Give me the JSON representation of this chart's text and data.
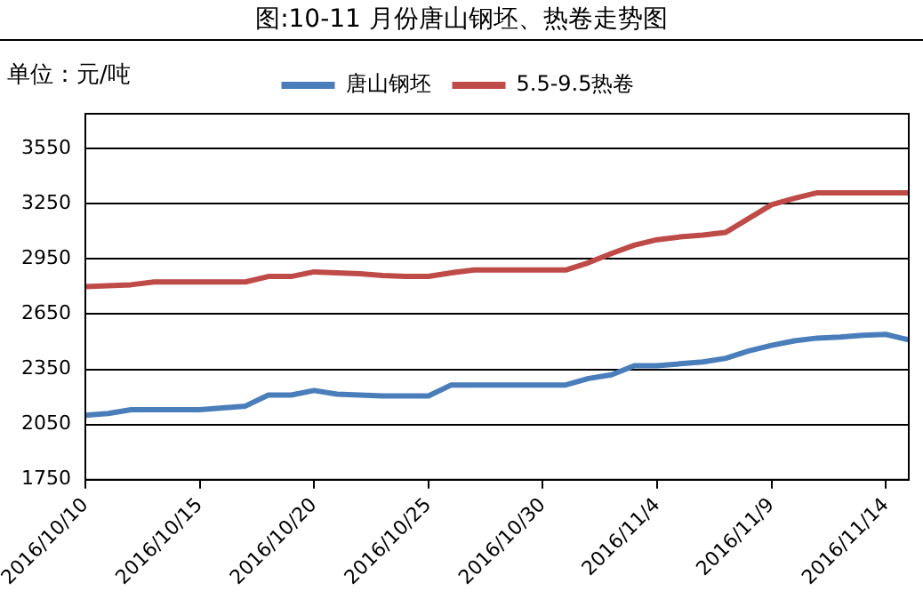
{
  "chart_data": {
    "type": "line",
    "title": "图:10-11 月份唐山钢坯、热卷走势图",
    "ylabel": "单位：元/吨",
    "x": [
      "2016-10-10",
      "2016-10-11",
      "2016-10-12",
      "2016-10-13",
      "2016-10-14",
      "2016-10-15",
      "2016-10-16",
      "2016-10-17",
      "2016-10-18",
      "2016-10-19",
      "2016-10-20",
      "2016-10-21",
      "2016-10-22",
      "2016-10-23",
      "2016-10-24",
      "2016-10-25",
      "2016-10-26",
      "2016-10-27",
      "2016-10-28",
      "2016-10-29",
      "2016-10-30",
      "2016-10-31",
      "2016-11-01",
      "2016-11-02",
      "2016-11-03",
      "2016-11-04",
      "2016-11-05",
      "2016-11-06",
      "2016-11-07",
      "2016-11-08",
      "2016-11-09",
      "2016-11-10",
      "2016-11-11",
      "2016-11-12",
      "2016-11-13",
      "2016-11-14",
      "2016-11-15"
    ],
    "series": [
      {
        "name": "唐山钢坯",
        "color": "#4a7ebb",
        "values": [
          2100,
          2110,
          2130,
          2130,
          2130,
          2130,
          2140,
          2150,
          2210,
          2210,
          2235,
          2215,
          2210,
          2205,
          2205,
          2205,
          2265,
          2265,
          2265,
          2265,
          2265,
          2265,
          2300,
          2320,
          2370,
          2370,
          2380,
          2390,
          2410,
          2450,
          2480,
          2505,
          2520,
          2525,
          2535,
          2540,
          2510
        ]
      },
      {
        "name": "5.5-9.5热卷",
        "color": "#be4b48",
        "values": [
          2800,
          2805,
          2810,
          2825,
          2825,
          2825,
          2825,
          2825,
          2855,
          2855,
          2880,
          2875,
          2870,
          2860,
          2855,
          2855,
          2875,
          2890,
          2890,
          2890,
          2890,
          2890,
          2930,
          2980,
          3025,
          3055,
          3070,
          3080,
          3095,
          3170,
          3245,
          3280,
          3310,
          3310,
          3310,
          3310,
          3310
        ]
      }
    ],
    "xlim": [
      "2016-10-10",
      "2016-11-15"
    ],
    "xticks": [
      {
        "value": "2016-10-10",
        "label": "2016/10/10"
      },
      {
        "value": "2016-10-15",
        "label": "2016/10/15"
      },
      {
        "value": "2016-10-20",
        "label": "2016/10/20"
      },
      {
        "value": "2016-10-25",
        "label": "2016/10/25"
      },
      {
        "value": "2016-10-30",
        "label": "2016/10/30"
      },
      {
        "value": "2016-11-04",
        "label": "2016/11/4"
      },
      {
        "value": "2016-11-09",
        "label": "2016/11/9"
      },
      {
        "value": "2016-11-14",
        "label": "2016/11/14"
      }
    ],
    "ylim": [
      1750,
      3740
    ],
    "yticks": [
      1750,
      2050,
      2350,
      2650,
      2950,
      3250,
      3550
    ],
    "grid": "y",
    "legend": "top",
    "marker": "none",
    "line_style": "solid"
  }
}
